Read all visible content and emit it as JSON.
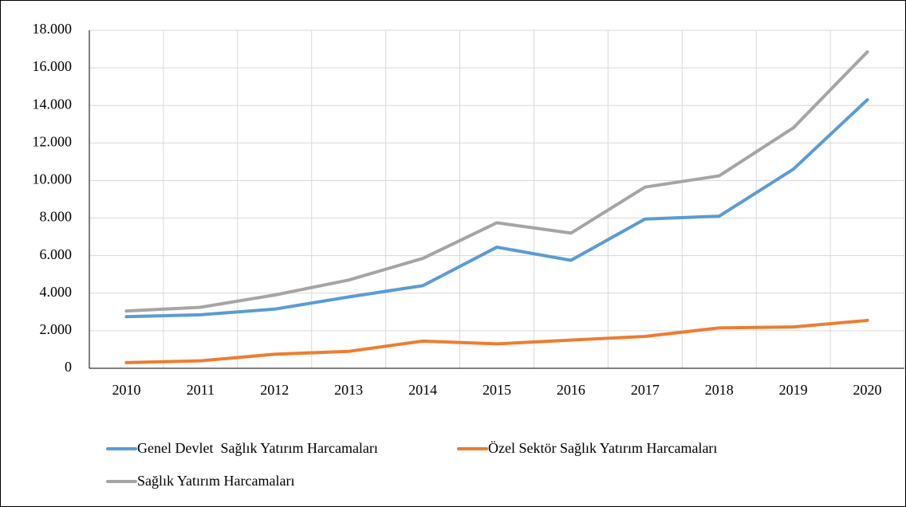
{
  "chart_data": {
    "type": "line",
    "categories": [
      "2010",
      "2011",
      "2012",
      "2013",
      "2014",
      "2015",
      "2016",
      "2017",
      "2018",
      "2019",
      "2020"
    ],
    "series": [
      {
        "name": "Genel Devlet  Sağlık Yatırım Harcamaları",
        "color": "#5b9bd5",
        "values": [
          2750,
          2850,
          3150,
          3800,
          4400,
          6450,
          5750,
          7950,
          8100,
          10600,
          14300
        ]
      },
      {
        "name": "Özel Sektör Sağlık Yatırım Harcamaları",
        "color": "#ed7d31",
        "values": [
          300,
          400,
          750,
          900,
          1450,
          1300,
          1500,
          1700,
          2150,
          2200,
          2550
        ]
      },
      {
        "name": "Sağlık Yatırım Harcamaları",
        "color": "#a5a5a5",
        "values": [
          3050,
          3250,
          3900,
          4700,
          5850,
          7750,
          7200,
          9650,
          10250,
          12800,
          16850
        ]
      }
    ],
    "ylim": [
      0,
      18000
    ],
    "yticks": [
      0,
      {
        "value": 2000,
        "label": "2.000"
      },
      {
        "value": 4000,
        "label": "4.000"
      },
      {
        "value": 6000,
        "label": "6.000"
      },
      {
        "value": 8000,
        "label": "8.000"
      },
      {
        "value": 10000,
        "label": "10.000"
      },
      {
        "value": 12000,
        "label": "12.000"
      },
      {
        "value": 14000,
        "label": "14.000"
      },
      {
        "value": 16000,
        "label": "16.000"
      },
      {
        "value": 18000,
        "label": "18.000"
      }
    ],
    "grid": true,
    "legend": "bottom"
  }
}
